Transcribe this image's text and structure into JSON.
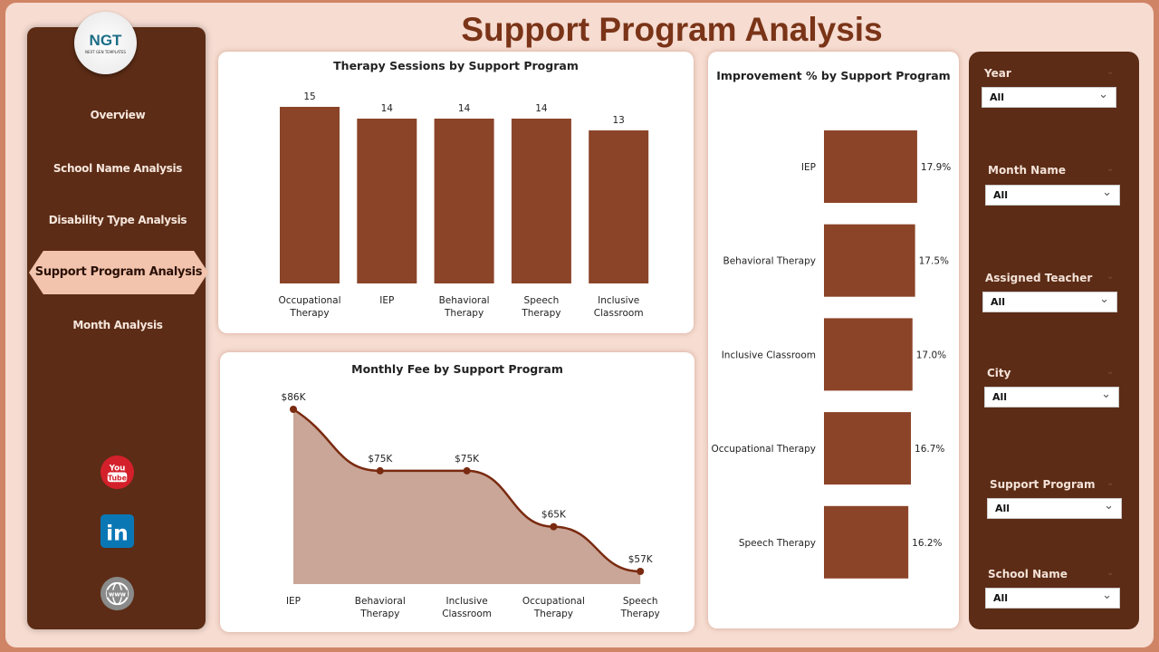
{
  "title": "Support Program Analysis",
  "logo": {
    "text": "NGT",
    "sub": "NEXT GEN TEMPLATES"
  },
  "nav": [
    {
      "label": "Overview"
    },
    {
      "label": "School Name Analysis"
    },
    {
      "label": "Disability Type Analysis"
    },
    {
      "label": "Support Program Analysis",
      "active": true
    },
    {
      "label": "Month Analysis"
    }
  ],
  "social": [
    "youtube-icon",
    "linkedin-icon",
    "globe-icon"
  ],
  "colors": {
    "bar": "#8b4428",
    "sidebar": "#5c2c16",
    "title": "#7a3418",
    "area": "#c9a697",
    "line": "#7a2a10"
  },
  "filters": [
    {
      "label": "Year",
      "value": "All"
    },
    {
      "label": "Month Name",
      "value": "All"
    },
    {
      "label": "Assigned Teacher",
      "value": "All"
    },
    {
      "label": "City",
      "value": "All"
    },
    {
      "label": "Support Program",
      "value": "All"
    },
    {
      "label": "School Name",
      "value": "All"
    }
  ],
  "chart_data": [
    {
      "type": "bar",
      "title": "Therapy Sessions by Support Program",
      "categories": [
        "Occupational Therapy",
        "IEP",
        "Behavioral Therapy",
        "Speech Therapy",
        "Inclusive Classroom"
      ],
      "values": [
        15,
        14,
        14,
        14,
        13
      ],
      "labels": [
        "15",
        "14",
        "14",
        "14",
        "13"
      ]
    },
    {
      "type": "area",
      "title": "Monthly Fee by Support Program",
      "categories": [
        "IEP",
        "Behavioral Therapy",
        "Inclusive Classroom",
        "Occupational Therapy",
        "Speech Therapy"
      ],
      "values": [
        86,
        75,
        75,
        65,
        57
      ],
      "labels": [
        "$86K",
        "$75K",
        "$75K",
        "$65K",
        "$57K"
      ]
    },
    {
      "type": "bar",
      "orientation": "horizontal",
      "title": "Improvement % by Support Program",
      "categories": [
        "IEP",
        "Behavioral Therapy",
        "Inclusive Classroom",
        "Occupational Therapy",
        "Speech Therapy"
      ],
      "values": [
        17.9,
        17.5,
        17.0,
        16.7,
        16.2
      ],
      "labels": [
        "17.9%",
        "17.5%",
        "17.0%",
        "16.7%",
        "16.2%"
      ]
    }
  ]
}
